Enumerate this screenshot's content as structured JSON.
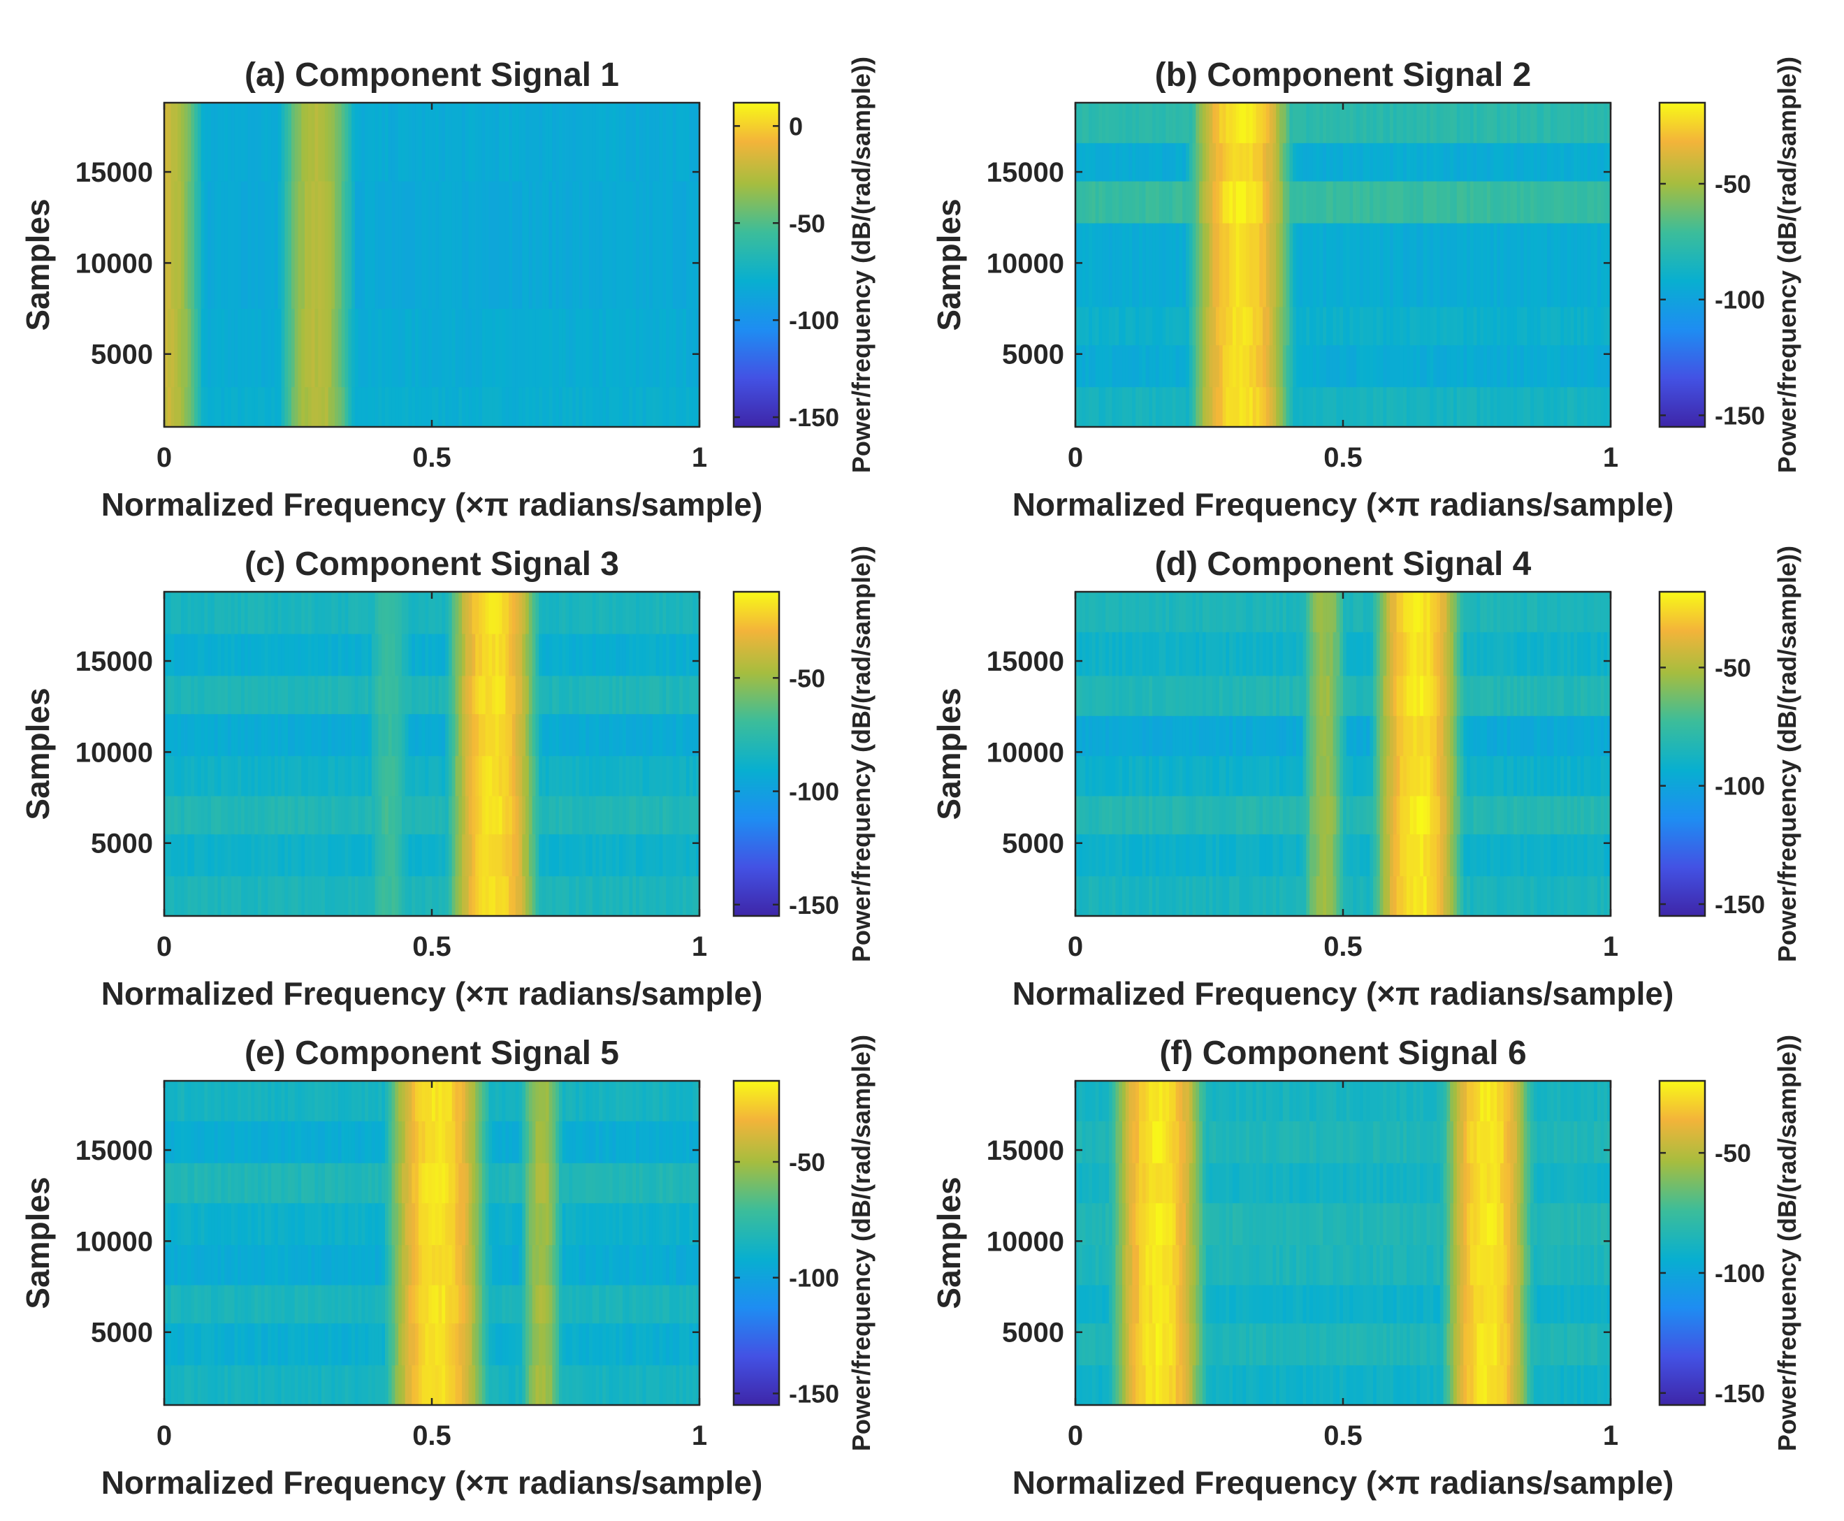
{
  "chart_data": [
    {
      "type": "heatmap",
      "title": "(a) Component Signal 1",
      "xlabel": "Normalized Frequency (×π radians/sample)",
      "ylabel": "Samples",
      "xlim": [
        0,
        1
      ],
      "ylim": [
        1000,
        18800
      ],
      "xticks": [
        {
          "value": 0,
          "label": "0"
        },
        {
          "value": 0.5,
          "label": "0.5"
        },
        {
          "value": 1,
          "label": "1"
        }
      ],
      "yticks": [
        {
          "value": 5000,
          "label": "5000"
        },
        {
          "value": 10000,
          "label": "10000"
        },
        {
          "value": 15000,
          "label": "15000"
        }
      ],
      "colorbar": {
        "label": "Power/frequency (dB/(rad/sample))",
        "range": [
          -155,
          12
        ],
        "ticks": [
          {
            "value": 0,
            "label": "0"
          },
          {
            "value": -50,
            "label": "-50"
          },
          {
            "value": -100,
            "label": "-100"
          },
          {
            "value": -150,
            "label": "-150"
          }
        ]
      },
      "background_db": -80,
      "bands": [
        {
          "center": 0.0,
          "width": 0.07,
          "peak_db": -20
        },
        {
          "center": 0.285,
          "width": 0.07,
          "peak_db": -25
        }
      ],
      "time_segments": [
        {
          "from": 1000,
          "to": 3200,
          "offset_db": 0
        },
        {
          "from": 3200,
          "to": 7500,
          "offset_db": -2
        },
        {
          "from": 7500,
          "to": 14500,
          "offset_db": -4
        },
        {
          "from": 14500,
          "to": 18800,
          "offset_db": -3
        }
      ]
    },
    {
      "type": "heatmap",
      "title": "(b) Component Signal 2",
      "xlabel": "Normalized Frequency (×π radians/sample)",
      "ylabel": "Samples",
      "xlim": [
        0,
        1
      ],
      "ylim": [
        1000,
        18800
      ],
      "xticks": [
        {
          "value": 0,
          "label": "0"
        },
        {
          "value": 0.5,
          "label": "0.5"
        },
        {
          "value": 1,
          "label": "1"
        }
      ],
      "yticks": [
        {
          "value": 5000,
          "label": "5000"
        },
        {
          "value": 10000,
          "label": "10000"
        },
        {
          "value": 15000,
          "label": "15000"
        }
      ],
      "colorbar": {
        "label": "Power/frequency (dB/(rad/sample))",
        "range": [
          -155,
          -15
        ],
        "ticks": [
          {
            "value": -50,
            "label": "-50"
          },
          {
            "value": -100,
            "label": "-100"
          },
          {
            "value": -150,
            "label": "-150"
          }
        ]
      },
      "background_db": -88,
      "bands": [
        {
          "center": 0.31,
          "width": 0.09,
          "peak_db": -20
        }
      ],
      "time_segments": [
        {
          "from": 1000,
          "to": 3200,
          "offset_db": 2
        },
        {
          "from": 3200,
          "to": 5500,
          "offset_db": -6
        },
        {
          "from": 5500,
          "to": 7600,
          "offset_db": -2
        },
        {
          "from": 7600,
          "to": 12200,
          "offset_db": -6
        },
        {
          "from": 12200,
          "to": 14500,
          "offset_db": 15
        },
        {
          "from": 14500,
          "to": 16600,
          "offset_db": -6
        },
        {
          "from": 16600,
          "to": 18800,
          "offset_db": 10
        }
      ]
    },
    {
      "type": "heatmap",
      "title": "(c) Component Signal 3",
      "xlabel": "Normalized Frequency (×π radians/sample)",
      "ylabel": "Samples",
      "xlim": [
        0,
        1
      ],
      "ylim": [
        1000,
        18800
      ],
      "xticks": [
        {
          "value": 0,
          "label": "0"
        },
        {
          "value": 0.5,
          "label": "0.5"
        },
        {
          "value": 1,
          "label": "1"
        }
      ],
      "yticks": [
        {
          "value": 5000,
          "label": "5000"
        },
        {
          "value": 10000,
          "label": "10000"
        },
        {
          "value": 15000,
          "label": "15000"
        }
      ],
      "colorbar": {
        "label": "Power/frequency (dB/(rad/sample))",
        "range": [
          -155,
          -12
        ],
        "ticks": [
          {
            "value": -50,
            "label": "-50"
          },
          {
            "value": -100,
            "label": "-100"
          },
          {
            "value": -150,
            "label": "-150"
          }
        ]
      },
      "background_db": -85,
      "bands": [
        {
          "center": 0.615,
          "width": 0.08,
          "peak_db": -18
        },
        {
          "center": 0.42,
          "width": 0.06,
          "peak_db": -70
        }
      ],
      "time_segments": [
        {
          "from": 1000,
          "to": 3200,
          "offset_db": 3
        },
        {
          "from": 3200,
          "to": 5500,
          "offset_db": -3
        },
        {
          "from": 5500,
          "to": 7600,
          "offset_db": 5
        },
        {
          "from": 7600,
          "to": 9800,
          "offset_db": -2
        },
        {
          "from": 9800,
          "to": 12100,
          "offset_db": -8
        },
        {
          "from": 12100,
          "to": 14200,
          "offset_db": 4
        },
        {
          "from": 14200,
          "to": 16500,
          "offset_db": -6
        },
        {
          "from": 16500,
          "to": 18800,
          "offset_db": 2
        }
      ]
    },
    {
      "type": "heatmap",
      "title": "(d) Component Signal 4",
      "xlabel": "Normalized Frequency (×π radians/sample)",
      "ylabel": "Samples",
      "xlim": [
        0,
        1
      ],
      "ylim": [
        1000,
        18800
      ],
      "xticks": [
        {
          "value": 0,
          "label": "0"
        },
        {
          "value": 0.5,
          "label": "0.5"
        },
        {
          "value": 1,
          "label": "1"
        }
      ],
      "yticks": [
        {
          "value": 5000,
          "label": "5000"
        },
        {
          "value": 10000,
          "label": "10000"
        },
        {
          "value": 15000,
          "label": "15000"
        }
      ],
      "colorbar": {
        "label": "Power/frequency (dB/(rad/sample))",
        "range": [
          -155,
          -18
        ],
        "ticks": [
          {
            "value": -50,
            "label": "-50"
          },
          {
            "value": -100,
            "label": "-100"
          },
          {
            "value": -150,
            "label": "-150"
          }
        ]
      },
      "background_db": -88,
      "bands": [
        {
          "center": 0.64,
          "width": 0.08,
          "peak_db": -22
        },
        {
          "center": 0.465,
          "width": 0.05,
          "peak_db": -55
        }
      ],
      "time_segments": [
        {
          "from": 1000,
          "to": 3200,
          "offset_db": 2
        },
        {
          "from": 3200,
          "to": 5500,
          "offset_db": -3
        },
        {
          "from": 5500,
          "to": 7600,
          "offset_db": 6
        },
        {
          "from": 7600,
          "to": 9800,
          "offset_db": -3
        },
        {
          "from": 9800,
          "to": 12000,
          "offset_db": -9
        },
        {
          "from": 12000,
          "to": 14200,
          "offset_db": 5
        },
        {
          "from": 14200,
          "to": 16600,
          "offset_db": -2
        },
        {
          "from": 16600,
          "to": 18800,
          "offset_db": 3
        }
      ]
    },
    {
      "type": "heatmap",
      "title": "(e) Component Signal 5",
      "xlabel": "Normalized Frequency (×π radians/sample)",
      "ylabel": "Samples",
      "xlim": [
        0,
        1
      ],
      "ylim": [
        1000,
        18800
      ],
      "xticks": [
        {
          "value": 0,
          "label": "0"
        },
        {
          "value": 0.5,
          "label": "0.5"
        },
        {
          "value": 1,
          "label": "1"
        }
      ],
      "yticks": [
        {
          "value": 5000,
          "label": "5000"
        },
        {
          "value": 10000,
          "label": "10000"
        },
        {
          "value": 15000,
          "label": "15000"
        }
      ],
      "colorbar": {
        "label": "Power/frequency (dB/(rad/sample))",
        "range": [
          -155,
          -15
        ],
        "ticks": [
          {
            "value": -50,
            "label": "-50"
          },
          {
            "value": -100,
            "label": "-100"
          },
          {
            "value": -150,
            "label": "-150"
          }
        ]
      },
      "background_db": -86,
      "bands": [
        {
          "center": 0.51,
          "width": 0.09,
          "peak_db": -20
        },
        {
          "center": 0.705,
          "width": 0.045,
          "peak_db": -50
        }
      ],
      "time_segments": [
        {
          "from": 1000,
          "to": 3200,
          "offset_db": 0
        },
        {
          "from": 3200,
          "to": 5500,
          "offset_db": -6
        },
        {
          "from": 5500,
          "to": 7600,
          "offset_db": 2
        },
        {
          "from": 7600,
          "to": 9800,
          "offset_db": -8
        },
        {
          "from": 9800,
          "to": 12100,
          "offset_db": -4
        },
        {
          "from": 12100,
          "to": 14300,
          "offset_db": 4
        },
        {
          "from": 14300,
          "to": 16600,
          "offset_db": -8
        },
        {
          "from": 16600,
          "to": 18800,
          "offset_db": 0
        }
      ]
    },
    {
      "type": "heatmap",
      "title": "(f) Component Signal 6",
      "xlabel": "Normalized Frequency (×π radians/sample)",
      "ylabel": "Samples",
      "xlim": [
        0,
        1
      ],
      "ylim": [
        1000,
        18800
      ],
      "xticks": [
        {
          "value": 0,
          "label": "0"
        },
        {
          "value": 0.5,
          "label": "0.5"
        },
        {
          "value": 1,
          "label": "1"
        }
      ],
      "yticks": [
        {
          "value": 5000,
          "label": "5000"
        },
        {
          "value": 10000,
          "label": "10000"
        },
        {
          "value": 15000,
          "label": "15000"
        }
      ],
      "colorbar": {
        "label": "Power/frequency (dB/(rad/sample))",
        "range": [
          -155,
          -20
        ],
        "ticks": [
          {
            "value": -50,
            "label": "-50"
          },
          {
            "value": -100,
            "label": "-100"
          },
          {
            "value": -150,
            "label": "-150"
          }
        ]
      },
      "background_db": -88,
      "bands": [
        {
          "center": 0.155,
          "width": 0.085,
          "peak_db": -24
        },
        {
          "center": 0.77,
          "width": 0.08,
          "peak_db": -24
        }
      ],
      "time_segments": [
        {
          "from": 1000,
          "to": 3200,
          "offset_db": -3
        },
        {
          "from": 3200,
          "to": 5500,
          "offset_db": 3
        },
        {
          "from": 5500,
          "to": 7600,
          "offset_db": -4
        },
        {
          "from": 7600,
          "to": 9800,
          "offset_db": 2
        },
        {
          "from": 9800,
          "to": 12100,
          "offset_db": 4
        },
        {
          "from": 12100,
          "to": 14300,
          "offset_db": -2
        },
        {
          "from": 14300,
          "to": 16600,
          "offset_db": 3
        },
        {
          "from": 16600,
          "to": 18800,
          "offset_db": 0
        }
      ]
    }
  ]
}
